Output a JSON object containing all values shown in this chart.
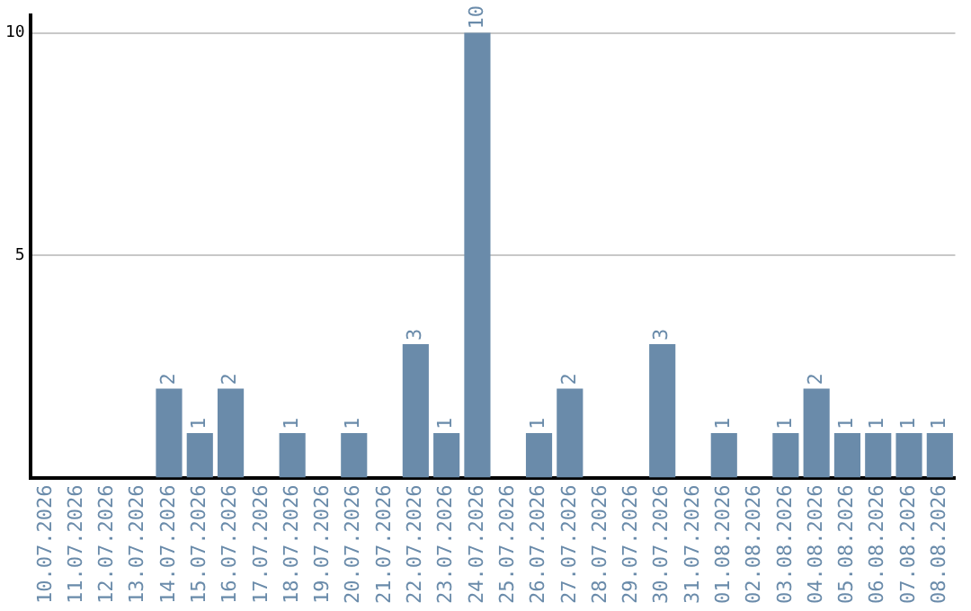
{
  "chart_data": {
    "type": "bar",
    "categories": [
      "10.07.2026",
      "11.07.2026",
      "12.07.2026",
      "13.07.2026",
      "14.07.2026",
      "15.07.2026",
      "16.07.2026",
      "17.07.2026",
      "18.07.2026",
      "19.07.2026",
      "20.07.2026",
      "21.07.2026",
      "22.07.2026",
      "23.07.2026",
      "24.07.2026",
      "25.07.2026",
      "26.07.2026",
      "27.07.2026",
      "28.07.2026",
      "29.07.2026",
      "30.07.2026",
      "31.07.2026",
      "01.08.2026",
      "02.08.2026",
      "03.08.2026",
      "04.08.2026",
      "05.08.2026",
      "06.08.2026",
      "07.08.2026",
      "08.08.2026"
    ],
    "values": [
      0,
      0,
      0,
      0,
      2,
      1,
      2,
      0,
      1,
      0,
      1,
      0,
      3,
      1,
      10,
      0,
      1,
      2,
      0,
      0,
      3,
      0,
      1,
      0,
      1,
      2,
      1,
      1,
      1,
      1
    ],
    "value_labels": [
      null,
      null,
      null,
      null,
      "2",
      "1",
      "2",
      null,
      "1",
      null,
      "1",
      null,
      "3",
      "1",
      "10",
      null,
      "1",
      "2",
      null,
      null,
      "3",
      null,
      "1",
      null,
      "1",
      "2",
      "1",
      "1",
      "1",
      "1"
    ],
    "color": "#6a8baa",
    "ylim": [
      0,
      10.4
    ],
    "yticks": [
      5,
      10
    ],
    "grid": "y"
  }
}
